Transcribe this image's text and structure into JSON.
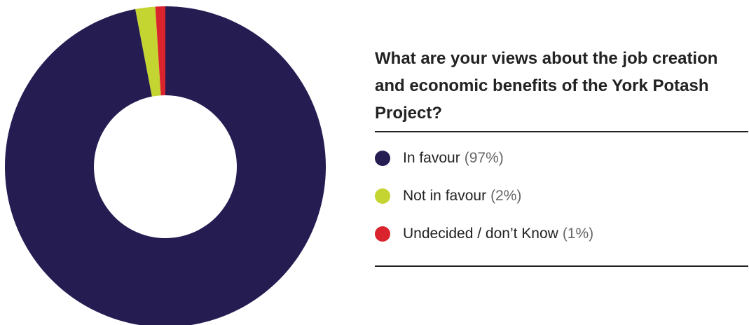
{
  "chart_data": {
    "type": "donut",
    "title": "What are your views about the job creation and economic benefits of the York Potash Project?",
    "categories": [
      "In favour",
      "Not in favour",
      "Undecided / don’t Know"
    ],
    "values": [
      97,
      2,
      1
    ],
    "value_labels": [
      "(97%)",
      "(2%)",
      "(1%)"
    ],
    "colors": [
      "#251c52",
      "#c4d431",
      "#d9232d"
    ]
  }
}
